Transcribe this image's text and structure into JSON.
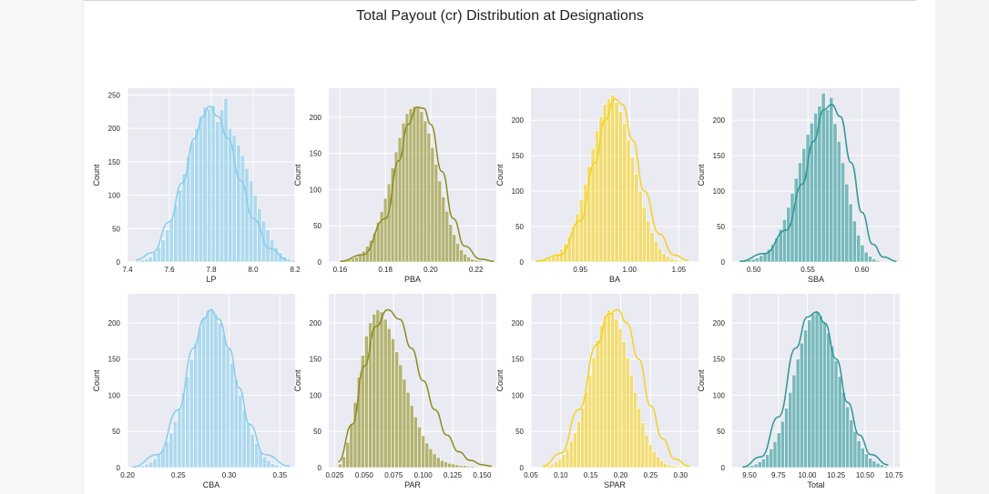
{
  "figure_title": "Total Payout (cr) Distribution at Designations",
  "colors": {
    "skyblue": "#87cdea",
    "olive": "#8c8c1e",
    "gold": "#f5d21e",
    "teal": "#2c9696",
    "plot_bg": "#eaeaf2",
    "grid": "#ffffff"
  },
  "chart_data": [
    {
      "type": "histogram",
      "xlabel": "LP",
      "ylabel": "Count",
      "color": "skyblue",
      "xlim": [
        7.4,
        8.2
      ],
      "ylim": [
        0,
        260
      ],
      "xticks": [
        7.4,
        7.6,
        7.8,
        8.0,
        8.2
      ],
      "xtick_labels": [
        "7.4",
        "7.6",
        "7.8",
        "8.0",
        "8.2"
      ],
      "yticks": [
        0,
        50,
        100,
        150,
        200,
        250
      ],
      "bins": {
        "start": 7.44,
        "width": 0.02,
        "counts": [
          2,
          3,
          5,
          8,
          14,
          22,
          33,
          48,
          64,
          85,
          108,
          132,
          158,
          180,
          200,
          218,
          232,
          229,
          235,
          210,
          228,
          245,
          200,
          190,
          175,
          160,
          140,
          122,
          100,
          80,
          62,
          48,
          33,
          22,
          14,
          8,
          5,
          3,
          1
        ]
      },
      "kde": [
        [
          7.44,
          3
        ],
        [
          7.52,
          14
        ],
        [
          7.6,
          60
        ],
        [
          7.66,
          118
        ],
        [
          7.72,
          185
        ],
        [
          7.76,
          218
        ],
        [
          7.79,
          233
        ],
        [
          7.83,
          218
        ],
        [
          7.88,
          185
        ],
        [
          7.94,
          122
        ],
        [
          8.0,
          65
        ],
        [
          8.08,
          20
        ],
        [
          8.16,
          4
        ]
      ]
    },
    {
      "type": "histogram",
      "xlabel": "PBA",
      "ylabel": "Count",
      "color": "olive",
      "xlim": [
        0.155,
        0.229
      ],
      "ylim": [
        0,
        240
      ],
      "xticks": [
        0.16,
        0.18,
        0.2,
        0.22
      ],
      "xtick_labels": [
        "0.16",
        "0.18",
        "0.20",
        "0.22"
      ],
      "yticks": [
        0,
        50,
        100,
        150,
        200
      ],
      "bins": {
        "start": 0.16,
        "width": 0.0016,
        "counts": [
          1,
          2,
          3,
          5,
          7,
          10,
          15,
          22,
          30,
          40,
          55,
          70,
          88,
          108,
          130,
          152,
          172,
          192,
          205,
          212,
          215,
          214,
          208,
          195,
          178,
          158,
          135,
          112,
          90,
          70,
          52,
          38,
          26,
          17,
          11,
          7,
          4,
          3,
          2,
          1,
          1,
          1
        ]
      },
      "kde": [
        [
          0.16,
          1
        ],
        [
          0.17,
          10
        ],
        [
          0.18,
          60
        ],
        [
          0.186,
          140
        ],
        [
          0.19,
          190
        ],
        [
          0.194,
          214
        ],
        [
          0.197,
          212
        ],
        [
          0.2,
          190
        ],
        [
          0.205,
          125
        ],
        [
          0.21,
          60
        ],
        [
          0.215,
          22
        ],
        [
          0.222,
          4
        ],
        [
          0.228,
          1
        ]
      ]
    },
    {
      "type": "histogram",
      "xlabel": "BA",
      "ylabel": "Count",
      "color": "gold",
      "xlim": [
        0.9,
        1.07
      ],
      "ylim": [
        0,
        245
      ],
      "xticks": [
        0.95,
        1.0,
        1.05
      ],
      "xtick_labels": [
        "0.95",
        "1.00",
        "1.05"
      ],
      "yticks": [
        0,
        50,
        100,
        150,
        200
      ],
      "bins": {
        "start": 0.905,
        "width": 0.004,
        "counts": [
          1,
          2,
          3,
          5,
          8,
          12,
          18,
          26,
          36,
          50,
          68,
          88,
          110,
          135,
          160,
          185,
          205,
          222,
          230,
          236,
          225,
          212,
          195,
          172,
          148,
          124,
          100,
          78,
          58,
          42,
          29,
          19,
          12,
          8,
          5,
          3,
          2,
          1,
          1,
          1,
          0,
          1
        ]
      },
      "kde": [
        [
          0.905,
          1
        ],
        [
          0.93,
          10
        ],
        [
          0.95,
          58
        ],
        [
          0.965,
          140
        ],
        [
          0.975,
          200
        ],
        [
          0.985,
          230
        ],
        [
          0.993,
          222
        ],
        [
          1.003,
          172
        ],
        [
          1.015,
          100
        ],
        [
          1.03,
          40
        ],
        [
          1.045,
          10
        ],
        [
          1.06,
          2
        ]
      ]
    },
    {
      "type": "histogram",
      "xlabel": "SBA",
      "ylabel": "Count",
      "color": "teal",
      "xlim": [
        0.48,
        0.635
      ],
      "ylim": [
        0,
        245
      ],
      "xticks": [
        0.5,
        0.55,
        0.6
      ],
      "xtick_labels": [
        "0.50",
        "0.55",
        "0.60"
      ],
      "yticks": [
        0,
        50,
        100,
        150,
        200
      ],
      "bins": {
        "start": 0.487,
        "width": 0.0036,
        "counts": [
          1,
          2,
          3,
          4,
          6,
          9,
          13,
          18,
          25,
          34,
          46,
          60,
          77,
          97,
          118,
          140,
          160,
          180,
          196,
          210,
          220,
          238,
          215,
          232,
          195,
          170,
          140,
          110,
          82,
          58,
          38,
          24,
          14,
          8,
          4,
          2,
          1,
          1,
          1,
          0,
          0,
          1
        ]
      },
      "kde": [
        [
          0.487,
          1
        ],
        [
          0.51,
          12
        ],
        [
          0.53,
          45
        ],
        [
          0.545,
          110
        ],
        [
          0.555,
          170
        ],
        [
          0.565,
          215
        ],
        [
          0.572,
          222
        ],
        [
          0.58,
          205
        ],
        [
          0.59,
          140
        ],
        [
          0.6,
          70
        ],
        [
          0.61,
          25
        ],
        [
          0.62,
          7
        ],
        [
          0.632,
          1
        ]
      ]
    },
    {
      "type": "histogram",
      "xlabel": "CBA",
      "ylabel": "Count",
      "color": "skyblue",
      "xlim": [
        0.2,
        0.365
      ],
      "ylim": [
        0,
        240
      ],
      "xticks": [
        0.2,
        0.25,
        0.3,
        0.35
      ],
      "xtick_labels": [
        "0.20",
        "0.25",
        "0.30",
        "0.35"
      ],
      "yticks": [
        0,
        50,
        100,
        150,
        200
      ],
      "bins": {
        "start": 0.205,
        "width": 0.004,
        "counts": [
          1,
          2,
          3,
          5,
          8,
          12,
          18,
          26,
          36,
          48,
          64,
          82,
          104,
          126,
          150,
          172,
          192,
          208,
          218,
          220,
          212,
          200,
          184,
          165,
          144,
          122,
          100,
          80,
          62,
          46,
          33,
          23,
          15,
          10,
          6,
          4,
          2,
          1,
          1,
          1
        ]
      },
      "kde": [
        [
          0.205,
          1
        ],
        [
          0.23,
          18
        ],
        [
          0.25,
          80
        ],
        [
          0.265,
          165
        ],
        [
          0.275,
          205
        ],
        [
          0.282,
          218
        ],
        [
          0.29,
          205
        ],
        [
          0.3,
          165
        ],
        [
          0.31,
          110
        ],
        [
          0.32,
          60
        ],
        [
          0.335,
          18
        ],
        [
          0.36,
          2
        ]
      ]
    },
    {
      "type": "histogram",
      "xlabel": "PAR",
      "ylabel": "Count",
      "color": "olive",
      "xlim": [
        0.02,
        0.162
      ],
      "ylim": [
        0,
        240
      ],
      "xticks": [
        0.025,
        0.05,
        0.075,
        0.1,
        0.125,
        0.15
      ],
      "xtick_labels": [
        "0.025",
        "0.050",
        "0.075",
        "0.100",
        "0.125",
        "0.150"
      ],
      "yticks": [
        0,
        50,
        100,
        150,
        200
      ],
      "bins": {
        "start": 0.028,
        "width": 0.0032,
        "counts": [
          5,
          15,
          35,
          60,
          90,
          125,
          155,
          182,
          200,
          212,
          218,
          215,
          205,
          192,
          178,
          160,
          142,
          122,
          104,
          86,
          70,
          56,
          44,
          34,
          26,
          19,
          14,
          10,
          8,
          6,
          5,
          4,
          3,
          3,
          2,
          2,
          1,
          1,
          1,
          1,
          1,
          1
        ]
      },
      "kde": [
        [
          0.028,
          8
        ],
        [
          0.04,
          60
        ],
        [
          0.05,
          140
        ],
        [
          0.06,
          195
        ],
        [
          0.07,
          218
        ],
        [
          0.08,
          205
        ],
        [
          0.09,
          165
        ],
        [
          0.1,
          120
        ],
        [
          0.11,
          80
        ],
        [
          0.12,
          45
        ],
        [
          0.13,
          22
        ],
        [
          0.14,
          10
        ],
        [
          0.15,
          4
        ],
        [
          0.158,
          2
        ]
      ]
    },
    {
      "type": "histogram",
      "xlabel": "SPAR",
      "ylabel": "Count",
      "color": "gold",
      "xlim": [
        0.05,
        0.33
      ],
      "ylim": [
        0,
        240
      ],
      "xticks": [
        0.05,
        0.1,
        0.15,
        0.2,
        0.25,
        0.3
      ],
      "xtick_labels": [
        "0.05",
        "0.10",
        "0.15",
        "0.20",
        "0.25",
        "0.30"
      ],
      "yticks": [
        0,
        50,
        100,
        150,
        200
      ],
      "bins": {
        "start": 0.07,
        "width": 0.0063,
        "counts": [
          2,
          3,
          5,
          8,
          12,
          18,
          26,
          36,
          48,
          64,
          82,
          104,
          128,
          152,
          176,
          196,
          210,
          218,
          214,
          205,
          192,
          174,
          152,
          128,
          104,
          82,
          62,
          45,
          32,
          22,
          15,
          10,
          6,
          4,
          3,
          2,
          2,
          1,
          1,
          1
        ]
      },
      "kde": [
        [
          0.07,
          2
        ],
        [
          0.1,
          20
        ],
        [
          0.13,
          80
        ],
        [
          0.16,
          170
        ],
        [
          0.18,
          212
        ],
        [
          0.195,
          218
        ],
        [
          0.21,
          200
        ],
        [
          0.23,
          150
        ],
        [
          0.25,
          85
        ],
        [
          0.27,
          40
        ],
        [
          0.29,
          12
        ],
        [
          0.315,
          2
        ]
      ]
    },
    {
      "type": "histogram",
      "xlabel": "Total",
      "ylabel": "Count",
      "color": "teal",
      "xlim": [
        9.35,
        10.8
      ],
      "ylim": [
        0,
        240
      ],
      "xticks": [
        9.5,
        9.75,
        10.0,
        10.25,
        10.5,
        10.75
      ],
      "xtick_labels": [
        "9.50",
        "9.75",
        "10.00",
        "10.25",
        "10.50",
        "10.75"
      ],
      "yticks": [
        0,
        50,
        100,
        150,
        200
      ],
      "bins": {
        "start": 9.44,
        "width": 0.033,
        "counts": [
          1,
          2,
          3,
          5,
          8,
          12,
          18,
          26,
          36,
          48,
          64,
          82,
          104,
          128,
          150,
          172,
          190,
          204,
          212,
          215,
          210,
          200,
          186,
          168,
          148,
          126,
          104,
          84,
          66,
          50,
          37,
          27,
          19,
          13,
          9,
          6,
          4,
          2,
          1,
          1
        ]
      },
      "kde": [
        [
          9.44,
          1
        ],
        [
          9.6,
          15
        ],
        [
          9.75,
          70
        ],
        [
          9.9,
          165
        ],
        [
          10.0,
          208
        ],
        [
          10.08,
          215
        ],
        [
          10.15,
          200
        ],
        [
          10.25,
          150
        ],
        [
          10.35,
          90
        ],
        [
          10.45,
          45
        ],
        [
          10.55,
          18
        ],
        [
          10.7,
          4
        ]
      ]
    }
  ]
}
